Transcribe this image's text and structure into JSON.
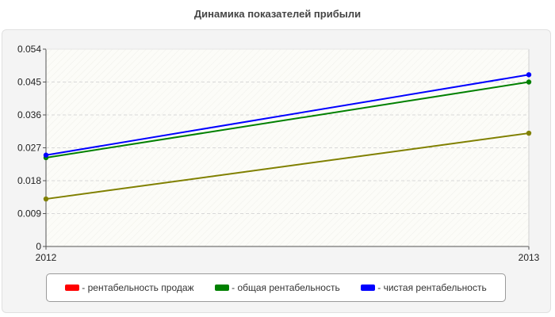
{
  "chart_data": {
    "type": "line",
    "title": "Динамика показателей прибыли",
    "x": [
      "2012",
      "2013"
    ],
    "ylim": [
      0,
      0.054
    ],
    "yticks": [
      "0",
      "0.009",
      "0.018",
      "0.027",
      "0.036",
      "0.045",
      "0.054"
    ],
    "grid": true,
    "legend_position": "bottom",
    "series": [
      {
        "name": "рентабельность продаж",
        "values": [
          0.013,
          0.031
        ],
        "color": "#ff0000",
        "line_color": "#808000"
      },
      {
        "name": "общая рентабельность",
        "values": [
          0.0243,
          0.045
        ],
        "color": "#008000",
        "line_color": "#008000"
      },
      {
        "name": "чистая рентабельность",
        "values": [
          0.025,
          0.047
        ],
        "color": "#0000ff",
        "line_color": "#0000ff"
      }
    ]
  }
}
